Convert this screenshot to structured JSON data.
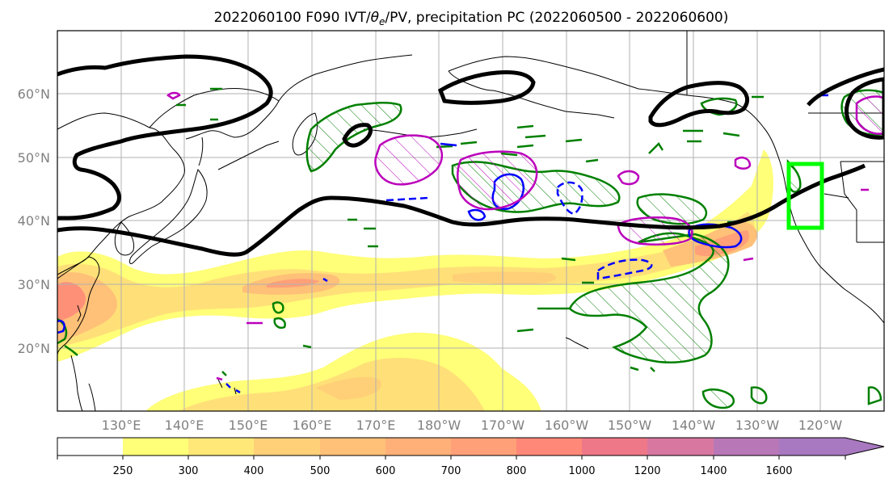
{
  "figure": {
    "title_prefix": "2022060100 F090 IVT/",
    "title_theta": "θ",
    "title_sub": "e",
    "title_suffix": "/PV, precipitation PC (2022060500 - 2022060600)"
  },
  "map": {
    "lat_labels": [
      "60°N",
      "50°N",
      "40°N",
      "30°N",
      "20°N"
    ],
    "lon_labels": [
      "130°E",
      "140°E",
      "150°E",
      "160°E",
      "170°E",
      "180°W",
      "170°W",
      "160°W",
      "150°W",
      "140°W",
      "130°W",
      "120°W"
    ],
    "colors": {
      "land_outline": "#000000",
      "pv_contour": "#000000",
      "precip_positive": "#008000",
      "precip_negative": "#0000ff",
      "theta_e": "#bb00bb",
      "highlight_box": "#00ff00",
      "grid": "#b0b0b0"
    }
  },
  "colorbar": {
    "levels": [
      "250",
      "300",
      "400",
      "500",
      "600",
      "700",
      "800",
      "1000",
      "1200",
      "1400",
      "1600"
    ],
    "colors": [
      "#ffff78",
      "#ffe878",
      "#ffd078",
      "#ffc078",
      "#ffb078",
      "#ffa078",
      "#ff8878",
      "#ef7888",
      "#d878a0",
      "#b878b8",
      "#a878c0"
    ]
  }
}
